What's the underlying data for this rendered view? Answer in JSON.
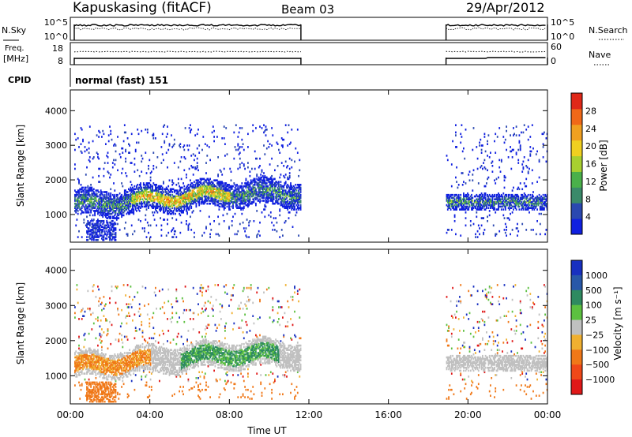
{
  "header": {
    "station": "Kapuskasing (fitACF)",
    "beam": "Beam 03",
    "date": "29/Apr/2012"
  },
  "top_panels": {
    "nsky_label": "N.Sky",
    "nsky_ticks": [
      "10^5",
      "10^0"
    ],
    "nsearch_label": "N.Search",
    "nsearch_ticks": [
      "10^5",
      "10^0"
    ],
    "freq_label_1": "Freq.",
    "freq_label_2": "[MHz]",
    "freq_ticks": [
      "18",
      "8"
    ],
    "nave_label": "Nave",
    "nave_ticks": [
      "60",
      "0"
    ],
    "cpid_label": "CPID",
    "cpid_text": "normal (fast) 151"
  },
  "chart_data": [
    {
      "type": "heatmap",
      "name": "power",
      "ylabel": "Slant Range [km]",
      "yticks": [
        1000,
        2000,
        3000,
        4000
      ],
      "ylim": [
        200,
        4600
      ],
      "xlim": [
        0,
        24
      ],
      "colorbar": {
        "label": "Power [dB]",
        "ticks": [
          "4",
          "8",
          "12",
          "16",
          "20",
          "24",
          "28"
        ],
        "colors": [
          "#1020e0",
          "#2a48b0",
          "#3a8a6a",
          "#4ab04a",
          "#a8d030",
          "#f0d020",
          "#f0a020",
          "#f06818",
          "#e02818"
        ]
      },
      "data_coverage_hours": [
        [
          0.2,
          11.6
        ],
        [
          18.9,
          24.0
        ]
      ]
    },
    {
      "type": "heatmap",
      "name": "velocity",
      "ylabel": "Slant Range [km]",
      "yticks": [
        1000,
        2000,
        3000,
        4000
      ],
      "ylim": [
        200,
        4600
      ],
      "xlim": [
        0,
        24
      ],
      "xlabel": "Time UT",
      "xticks": [
        "00:00",
        "04:00",
        "08:00",
        "12:00",
        "16:00",
        "20:00",
        "00:00"
      ],
      "colorbar": {
        "label": "Velocity [m s⁻¹]",
        "ticks": [
          "1000",
          "500",
          "100",
          "25",
          "−25",
          "−100",
          "−500",
          "−1000"
        ],
        "colors": [
          "#1830c0",
          "#2858a8",
          "#2e8a60",
          "#5cc040",
          "#c0c0c0",
          "#f0b030",
          "#f07818",
          "#f04818",
          "#e01818"
        ]
      },
      "data_coverage_hours": [
        [
          0.2,
          11.6
        ],
        [
          18.9,
          24.0
        ]
      ]
    }
  ]
}
